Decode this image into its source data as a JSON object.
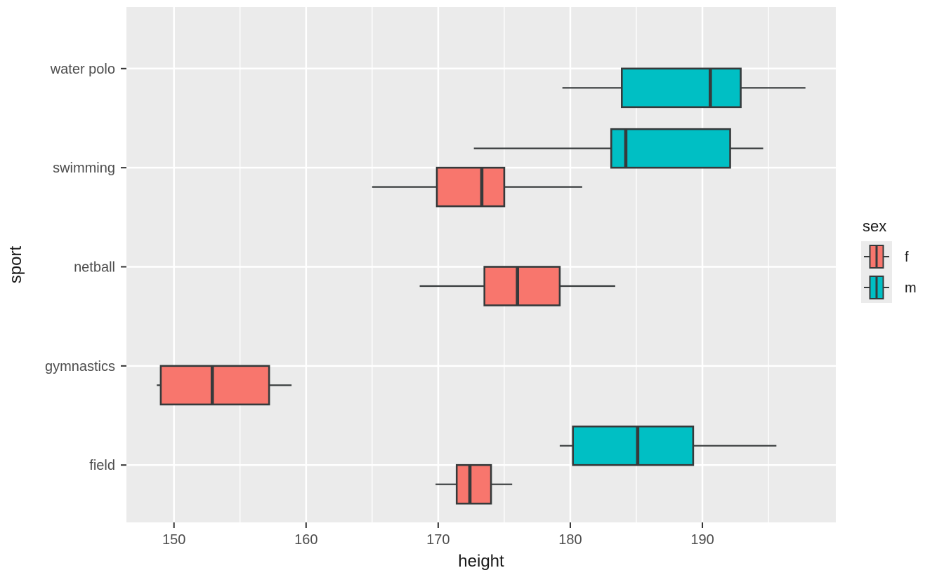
{
  "figure": {
    "background": "#FFFFFF"
  },
  "chart_data": {
    "type": "boxplot",
    "orientation": "horizontal",
    "title": "",
    "xlabel": "height",
    "ylabel": "sport",
    "x_ticks": [
      150,
      160,
      170,
      180,
      190
    ],
    "x_minor_ticks": [
      155,
      165,
      175,
      185,
      195
    ],
    "x_range": [
      146.4,
      200.1
    ],
    "categories": [
      "water polo",
      "swimming",
      "netball",
      "gymnastics",
      "field"
    ],
    "panel_bg": "#EBEBEB",
    "grid_color": "#FFFFFF",
    "box_border_color": "#363A3B",
    "tick_color": "#333333",
    "tick_label_color": "#4D4D4D",
    "axis_title_color": "#1A1A1A",
    "legend": {
      "title": "sex",
      "key_bg": "#EBEBEB",
      "entries": [
        {
          "label": "f",
          "color": "#F8766D"
        },
        {
          "label": "m",
          "color": "#00BFC4"
        }
      ]
    },
    "boxes": [
      {
        "category": "water polo",
        "group": "m",
        "slot": "lower",
        "color": "#00BFC4",
        "whisker_low": 179.4,
        "q1": 183.9,
        "median": 190.6,
        "q3": 192.9,
        "whisker_high": 197.8
      },
      {
        "category": "swimming",
        "group": "m",
        "slot": "upper",
        "color": "#00BFC4",
        "whisker_low": 172.7,
        "q1": 183.1,
        "median": 184.2,
        "q3": 192.1,
        "whisker_high": 194.6
      },
      {
        "category": "swimming",
        "group": "f",
        "slot": "lower",
        "color": "#F8766D",
        "whisker_low": 165.0,
        "q1": 169.9,
        "median": 173.3,
        "q3": 175.0,
        "whisker_high": 180.9
      },
      {
        "category": "netball",
        "group": "f",
        "slot": "lower",
        "color": "#F8766D",
        "whisker_low": 168.6,
        "q1": 173.5,
        "median": 176.0,
        "q3": 179.2,
        "whisker_high": 183.4
      },
      {
        "category": "gymnastics",
        "group": "f",
        "slot": "lower",
        "color": "#F8766D",
        "whisker_low": 148.7,
        "q1": 149.0,
        "median": 152.9,
        "q3": 157.2,
        "whisker_high": 158.9
      },
      {
        "category": "field",
        "group": "m",
        "slot": "upper",
        "color": "#00BFC4",
        "whisker_low": 179.2,
        "q1": 180.2,
        "median": 185.1,
        "q3": 189.3,
        "whisker_high": 195.6
      },
      {
        "category": "field",
        "group": "f",
        "slot": "lower",
        "color": "#F8766D",
        "whisker_low": 169.8,
        "q1": 171.4,
        "median": 172.4,
        "q3": 174.0,
        "whisker_high": 175.6
      }
    ]
  }
}
